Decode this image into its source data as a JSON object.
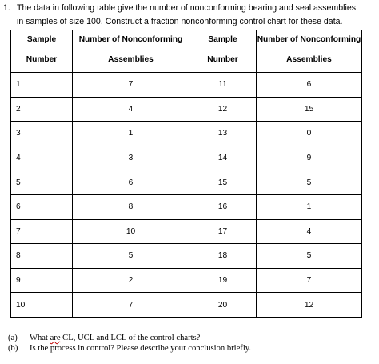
{
  "problem": {
    "number": "1.",
    "line1": "The data in following table give the number of nonconforming bearing and seal assemblies",
    "line2": "in samples of size 100. Construct a fraction nonconforming control chart for these data."
  },
  "table": {
    "headers": [
      {
        "line1": "Sample",
        "line2": "Number"
      },
      {
        "line1": "Number of Nonconforming",
        "line2": "Assemblies"
      },
      {
        "line1": "Sample",
        "line2": "Number"
      },
      {
        "line1": "Number of Nonconforming",
        "line2": "Assemblies"
      }
    ],
    "rows": [
      [
        "1",
        "7",
        "11",
        "6"
      ],
      [
        "2",
        "4",
        "12",
        "15"
      ],
      [
        "3",
        "1",
        "13",
        "0"
      ],
      [
        "4",
        "3",
        "14",
        "9"
      ],
      [
        "5",
        "6",
        "15",
        "5"
      ],
      [
        "6",
        "8",
        "16",
        "1"
      ],
      [
        "7",
        "10",
        "17",
        "4"
      ],
      [
        "8",
        "5",
        "18",
        "5"
      ],
      [
        "9",
        "2",
        "19",
        "7"
      ],
      [
        "10",
        "7",
        "20",
        "12"
      ]
    ]
  },
  "questions": {
    "a": {
      "label": "(a)",
      "text_before": "What ",
      "misspelled": "are",
      "text_after": " CL, UCL and LCL of the control charts?"
    },
    "b": {
      "label": "(b)",
      "text": "Is the process in control? Please describe your conclusion briefly."
    }
  }
}
